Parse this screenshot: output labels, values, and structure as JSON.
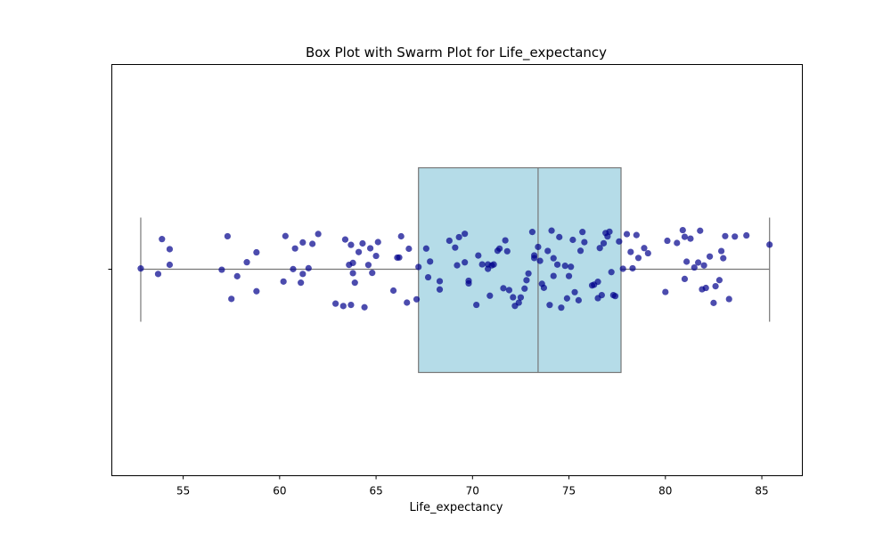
{
  "chart_data": {
    "type": "box+swarm",
    "title": "Box Plot with Swarm Plot for Life_expectancy",
    "xlabel": "Life_expectancy",
    "ylabel": "",
    "xlim": [
      51.3,
      87.1
    ],
    "xticks": [
      55,
      60,
      65,
      70,
      75,
      80,
      85
    ],
    "grid": false,
    "box": {
      "min": 52.8,
      "q1": 67.2,
      "median": 73.4,
      "q3": 77.7,
      "max": 85.4
    },
    "points": [
      52.8,
      53.7,
      53.9,
      54.3,
      54.3,
      57.0,
      57.3,
      57.5,
      57.8,
      58.3,
      58.8,
      58.8,
      60.2,
      60.3,
      60.7,
      60.8,
      61.1,
      61.2,
      61.2,
      61.5,
      61.7,
      62.0,
      62.9,
      63.3,
      63.4,
      63.6,
      63.7,
      63.7,
      63.8,
      63.8,
      63.9,
      64.1,
      64.3,
      64.4,
      64.6,
      64.7,
      64.8,
      65.0,
      65.1,
      65.9,
      66.1,
      66.2,
      66.3,
      66.6,
      66.7,
      67.1,
      67.2,
      67.6,
      67.7,
      67.8,
      68.3,
      68.3,
      68.8,
      69.1,
      69.2,
      69.3,
      69.6,
      69.6,
      69.8,
      69.8,
      70.2,
      70.3,
      70.5,
      70.8,
      70.8,
      70.9,
      71.0,
      71.1,
      71.3,
      71.4,
      71.6,
      71.7,
      71.8,
      71.9,
      72.1,
      72.2,
      72.4,
      72.5,
      72.7,
      72.8,
      72.9,
      73.1,
      73.2,
      73.2,
      73.4,
      73.5,
      73.6,
      73.7,
      73.9,
      74.0,
      74.1,
      74.2,
      74.2,
      74.4,
      74.5,
      74.6,
      74.8,
      74.9,
      75.0,
      75.1,
      75.2,
      75.3,
      75.5,
      75.6,
      75.7,
      75.8,
      76.2,
      76.3,
      76.5,
      76.5,
      76.6,
      76.7,
      76.8,
      76.9,
      77.0,
      77.1,
      77.2,
      77.3,
      77.4,
      77.6,
      77.8,
      78.0,
      78.2,
      78.3,
      78.5,
      78.6,
      78.9,
      79.1,
      80.0,
      80.1,
      80.6,
      80.9,
      81.0,
      81.0,
      81.1,
      81.3,
      81.5,
      81.7,
      81.8,
      81.9,
      82.0,
      82.1,
      82.3,
      82.5,
      82.6,
      82.8,
      82.9,
      83.0,
      83.1,
      83.3,
      83.6,
      84.2,
      85.4
    ]
  }
}
